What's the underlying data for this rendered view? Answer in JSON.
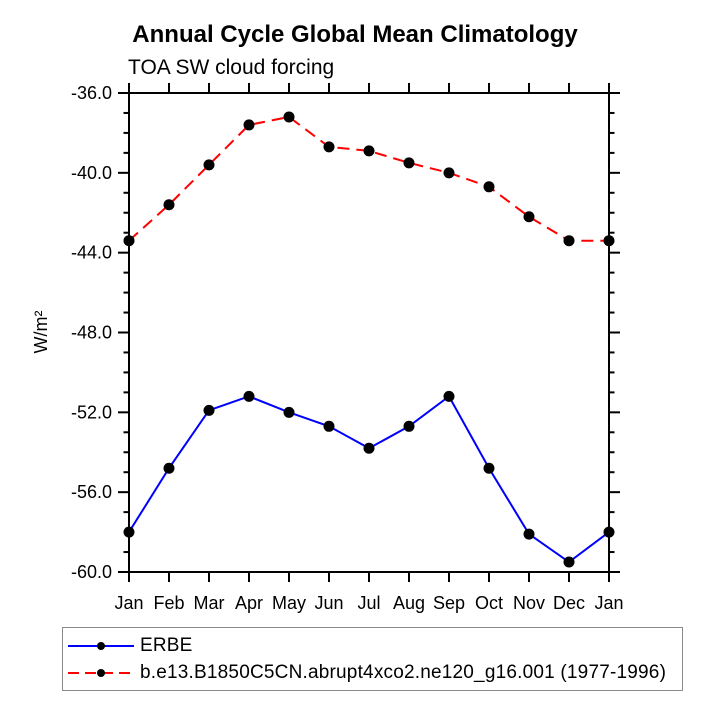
{
  "chart_data": {
    "type": "line",
    "title": "Annual Cycle Global Mean Climatology",
    "subtitle": "TOA SW cloud forcing",
    "ylabel": "W/m²",
    "xlabel": "",
    "categories": [
      "Jan",
      "Feb",
      "Mar",
      "Apr",
      "May",
      "Jun",
      "Jul",
      "Aug",
      "Sep",
      "Oct",
      "Nov",
      "Dec",
      "Jan"
    ],
    "series": [
      {
        "name": "ERBE",
        "color": "#0000ff",
        "line_style": "solid",
        "marker": "filled-circle",
        "marker_color": "#000000",
        "values": [
          -58.0,
          -54.8,
          -51.9,
          -51.2,
          -52.0,
          -52.7,
          -53.8,
          -52.7,
          -51.2,
          -54.8,
          -58.1,
          -59.5,
          -58.0
        ]
      },
      {
        "name": "b.e13.B1850C5CN.abrupt4xco2.ne120_g16.001 (1977-1996)",
        "color": "#ff0000",
        "line_style": "dashed",
        "marker": "filled-circle",
        "marker_color": "#000000",
        "values": [
          -43.4,
          -41.6,
          -39.6,
          -37.6,
          -37.2,
          -38.7,
          -38.9,
          -39.5,
          -40.0,
          -40.7,
          -42.2,
          -43.4,
          -43.4
        ]
      }
    ],
    "ylim": [
      -60,
      -36
    ],
    "ytick_major": 4,
    "ytick_minor": 1,
    "ytick_labels": [
      "-36.0",
      "-40.0",
      "-44.0",
      "-48.0",
      "-52.0",
      "-56.0",
      "-60.0"
    ],
    "grid": false,
    "legend_position": "bottom-left",
    "marker_color": "#000000",
    "axis_color": "#000000"
  }
}
